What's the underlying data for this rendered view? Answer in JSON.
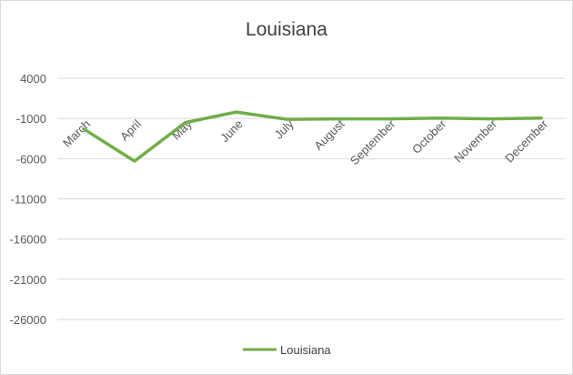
{
  "chart_data": {
    "type": "line",
    "title": "Louisiana",
    "categories": [
      "March",
      "April",
      "May",
      "June",
      "July",
      "August",
      "September",
      "October",
      "November",
      "December"
    ],
    "series": [
      {
        "name": "Louisiana",
        "color": "#70ad47",
        "values": [
          -2300,
          -6300,
          -1500,
          -200,
          -1100,
          -1050,
          -1050,
          -950,
          -1050,
          -950
        ]
      }
    ],
    "y_ticks": [
      4000,
      -1000,
      -6000,
      -11000,
      -16000,
      -21000,
      -26000
    ],
    "ylim": [
      -29000,
      6500
    ],
    "xlabel": "",
    "ylabel": "",
    "grid": true,
    "legend_position": "bottom"
  }
}
